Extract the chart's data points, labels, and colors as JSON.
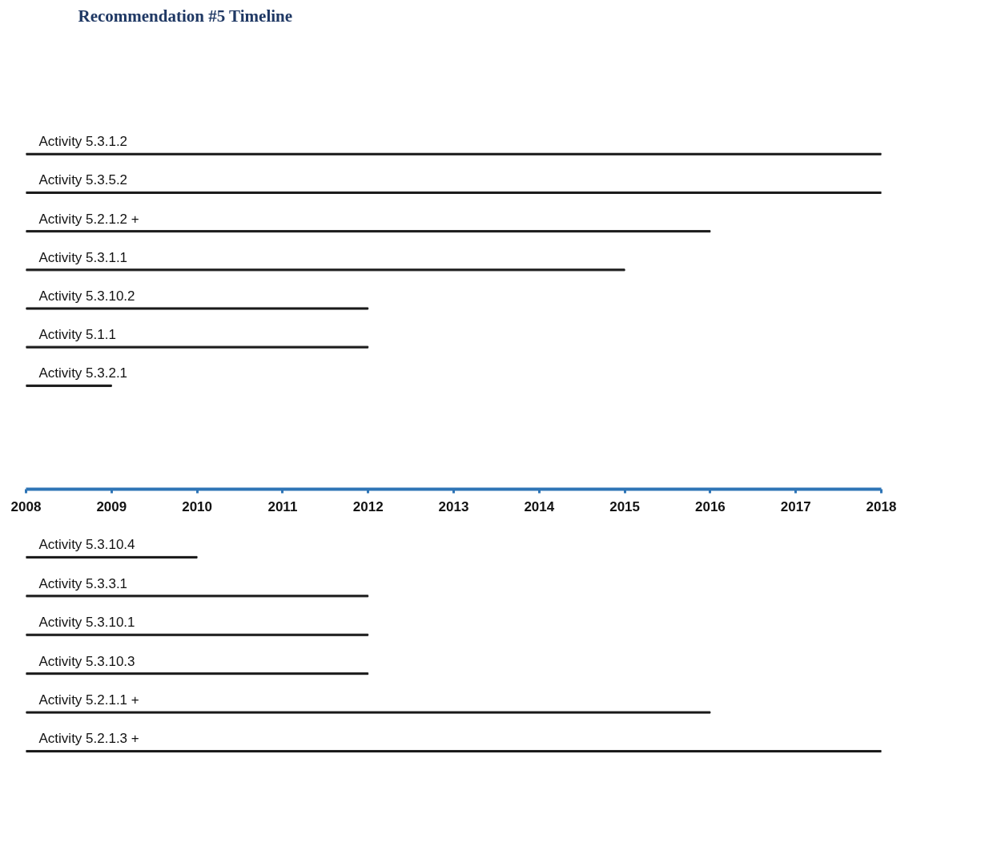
{
  "chart_data": {
    "type": "bar",
    "orientation": "horizontal",
    "title": "Recommendation #5 Timeline",
    "categories": [
      "Activity 5.3.1.2",
      "Activity 5.3.5.2",
      "Activity 5.2.1.2 +",
      "Activity 5.3.1.1",
      "Activity 5.3.10.2",
      "Activity 5.1.1",
      "Activity 5.3.2.1",
      "Activity 5.3.10.4",
      "Activity 5.3.3.1",
      "Activity 5.3.10.1",
      "Activity 5.3.10.3",
      "Activity 5.2.1.1 +",
      "Activity 5.2.1.3 +"
    ],
    "base": [
      2008,
      2008,
      2008,
      2008,
      2008,
      2008,
      2008,
      2008,
      2008,
      2008,
      2008,
      2008,
      2008
    ],
    "values": [
      10,
      10,
      8,
      7,
      4,
      4,
      1,
      2,
      4,
      4,
      4,
      8,
      10
    ],
    "color": "#1a1a1a",
    "xlim": [
      2008,
      2018
    ],
    "xticks": [
      2008,
      2009,
      2010,
      2011,
      2012,
      2013,
      2014,
      2015,
      2016,
      2017,
      2018
    ]
  }
}
